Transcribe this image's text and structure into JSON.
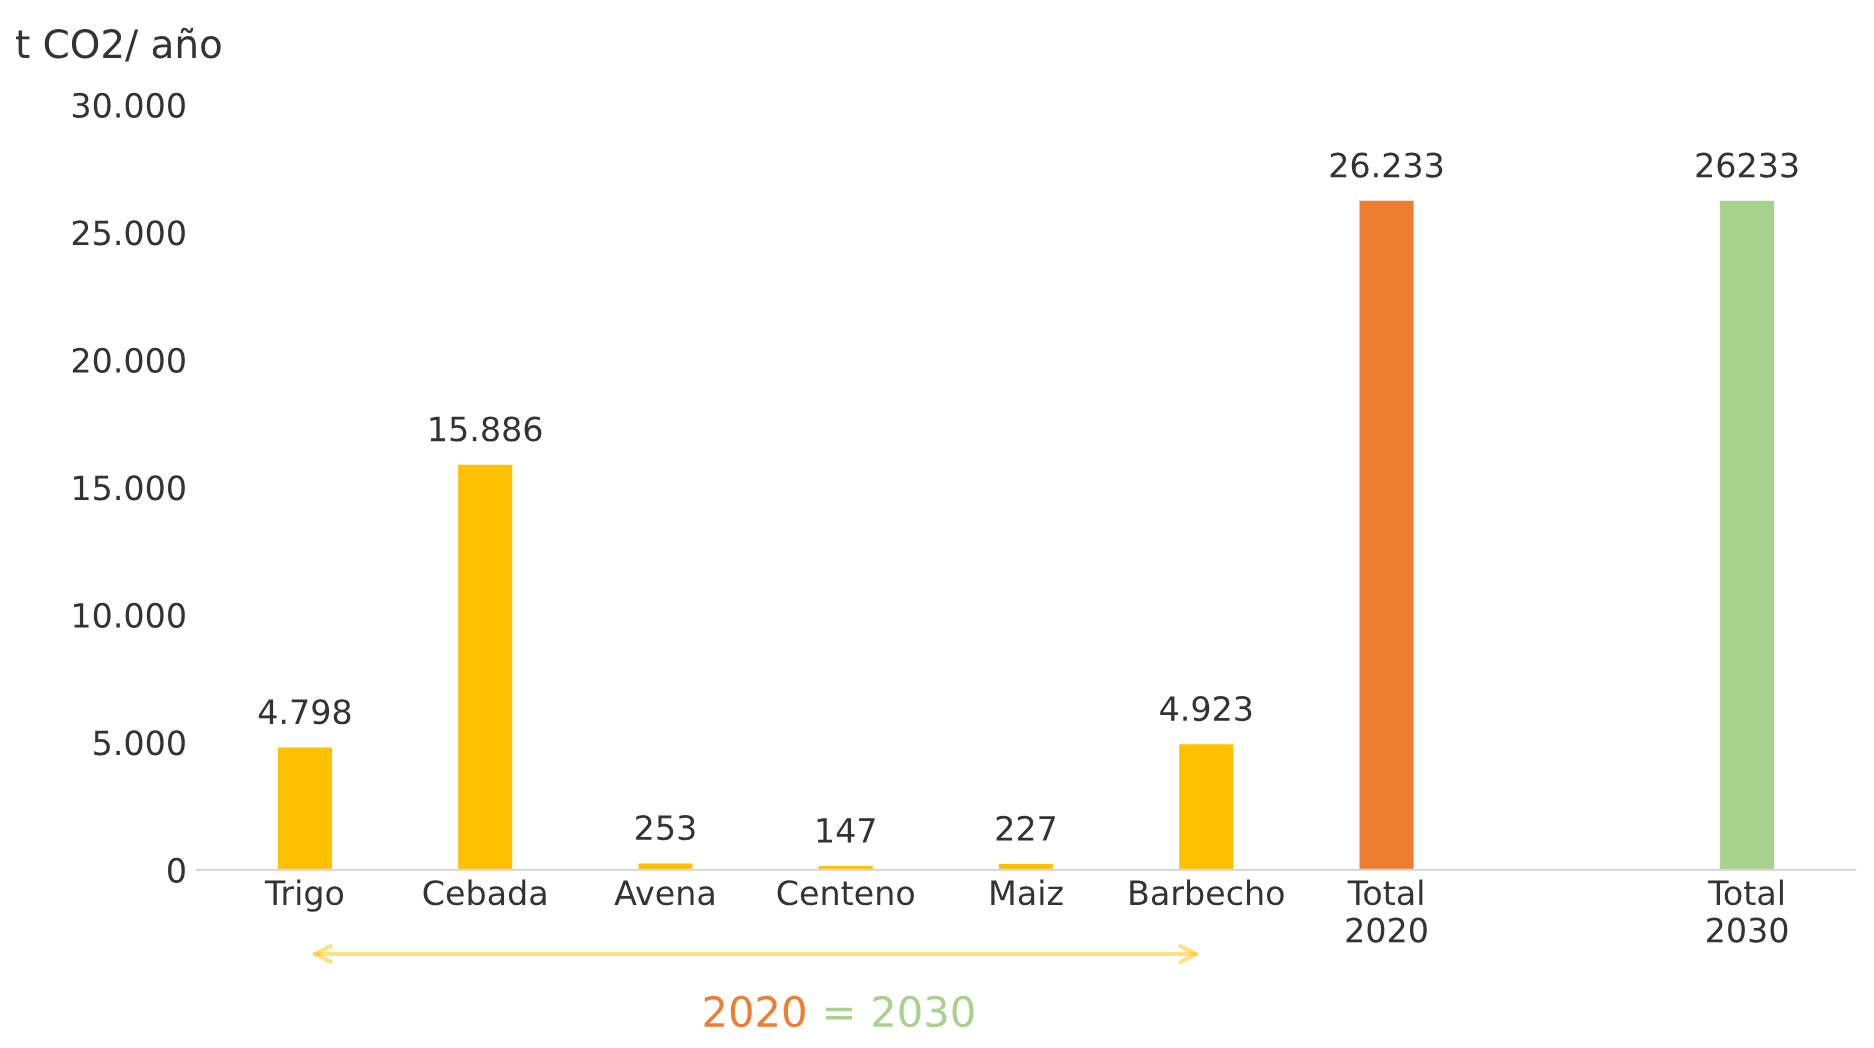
{
  "chart_data": {
    "type": "bar",
    "ylabel": "t CO2/ año",
    "categories": [
      "Trigo",
      "Cebada",
      "Avena",
      "Centeno",
      "Maiz",
      "Barbecho",
      "Total\n2020",
      null,
      "Total\n2030"
    ],
    "values": [
      4798,
      15886,
      253,
      147,
      227,
      4923,
      26233,
      null,
      26233
    ],
    "colors": [
      "#ffc000",
      "#ffc000",
      "#ffc000",
      "#ffc000",
      "#ffc000",
      "#ffc000",
      "#ed7d31",
      null,
      "#a9d18e"
    ],
    "value_labels": [
      "4.798",
      "15.886",
      "253",
      "147",
      "227",
      "4.923",
      "26.233",
      null,
      "26233"
    ],
    "ylim": [
      0,
      30000
    ],
    "yticks": [
      {
        "value": 0,
        "label": "0"
      },
      {
        "value": 5000,
        "label": "5.000"
      },
      {
        "value": 10000,
        "label": "10.000"
      },
      {
        "value": 15000,
        "label": "15.000"
      },
      {
        "value": 20000,
        "label": "20.000"
      },
      {
        "value": 25000,
        "label": "25.000"
      },
      {
        "value": 30000,
        "label": "30.000"
      }
    ],
    "grid": false,
    "annotations": [
      "2020",
      "=",
      "2030"
    ]
  }
}
